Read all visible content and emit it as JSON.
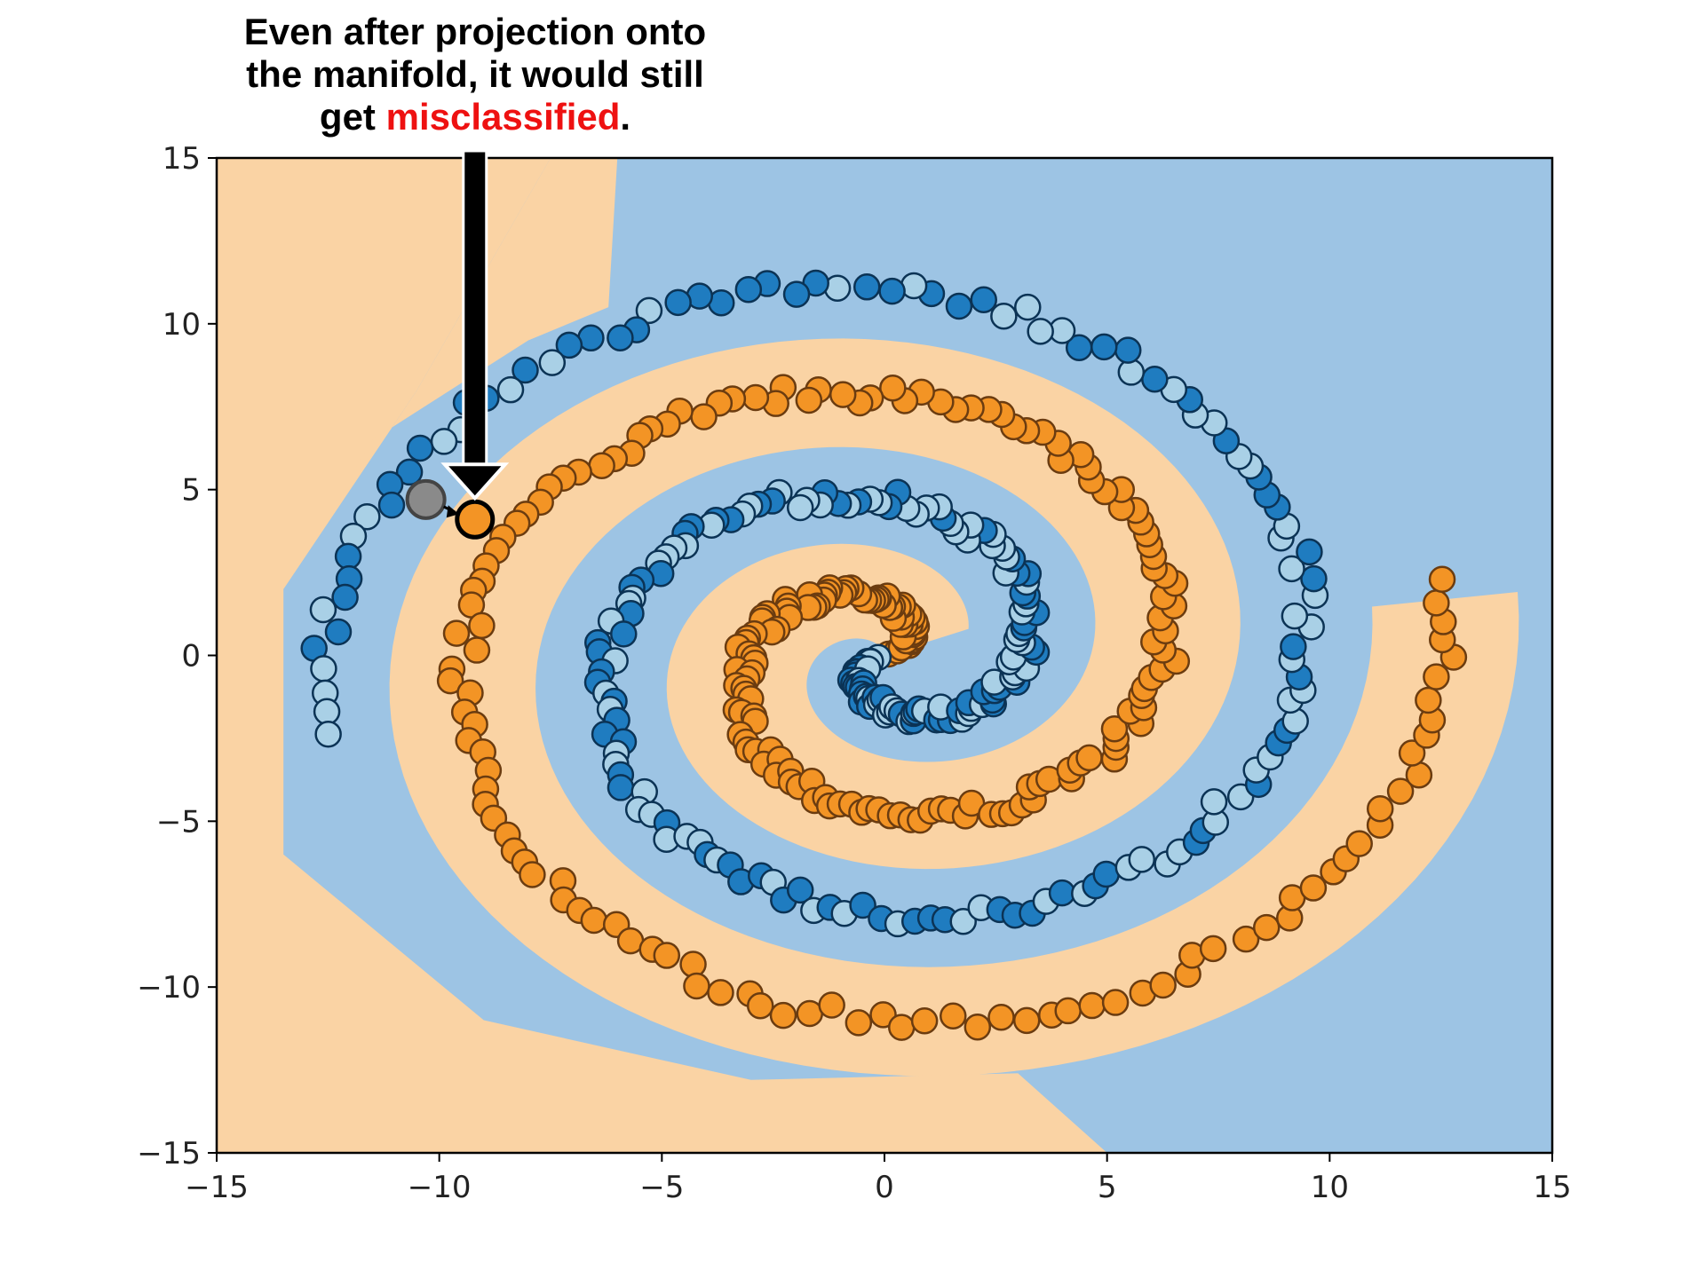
{
  "annotation": {
    "line1": "Even after projection onto",
    "line2": "the manifold, it would still",
    "line3_prefix": "get ",
    "line3_highlight": "misclassified",
    "line3_suffix": ".",
    "highlight_color": "#ee1111"
  },
  "chart_data": {
    "type": "scatter",
    "title": "",
    "xlabel": "",
    "ylabel": "",
    "xlim": [
      -15,
      15
    ],
    "ylim": [
      -15,
      15
    ],
    "x_ticks": [
      "−15",
      "−10",
      "−5",
      "0",
      "5",
      "10",
      "15"
    ],
    "y_ticks": [
      "15",
      "10",
      "5",
      "0",
      "−5",
      "−10",
      "−15"
    ],
    "grid": false,
    "legend": "none",
    "background_regions": {
      "class_a_color": "#fad3a4",
      "class_b_color": "#9dc4e4"
    },
    "series": [
      {
        "color": "#f39425",
        "edge": "#6b3c10",
        "spiral": {
          "theta_start": 0.4,
          "theta_end": 12.75,
          "rotation": 0
        }
      },
      {
        "color": "#1f7cc0",
        "edge": "#0b3355",
        "light_color": "#a9d0e6",
        "spiral": {
          "theta_start": 0.4,
          "theta_end": 12.75,
          "rotation": 3.14159
        }
      }
    ],
    "highlighted_points": {
      "original": {
        "x": -10.3,
        "y": 4.7,
        "color": "#8a8a8a"
      },
      "projected": {
        "x": -9.2,
        "y": 4.1,
        "color": "#f39425"
      }
    }
  }
}
